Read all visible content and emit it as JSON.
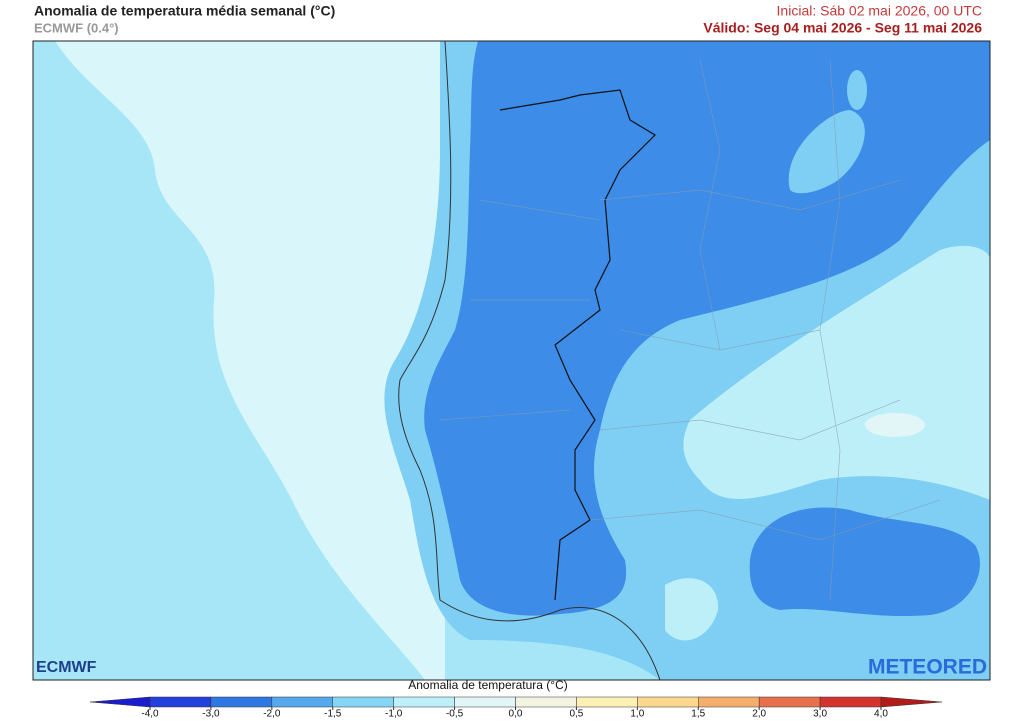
{
  "header": {
    "title": "Anomalia de temperatura média semanal (°C)",
    "subtitle": "ECMWF (0.4°)",
    "initial": "Inicial: Sáb 02 mai 2026, 00 UTC",
    "valid": "Válido: Seg 04 mai 2026 - Seg 11 mai 2026"
  },
  "logos": {
    "left": "ECMWF",
    "right": "METEORED"
  },
  "legend": {
    "title": "Anomalia de temperatura (°C)",
    "ticks": [
      {
        "value": -4,
        "label": "-4,0"
      },
      {
        "value": -3,
        "label": "-3,0"
      },
      {
        "value": -2,
        "label": "-2,0"
      },
      {
        "value": -1.5,
        "label": "-1,5"
      },
      {
        "value": -1,
        "label": "-1,0"
      },
      {
        "value": -0.5,
        "label": "-0,5"
      },
      {
        "value": 0,
        "label": "0,0"
      },
      {
        "value": 0.5,
        "label": "0,5"
      },
      {
        "value": 1,
        "label": "1,0"
      },
      {
        "value": 1.5,
        "label": "1,5"
      },
      {
        "value": 2,
        "label": "2,0"
      },
      {
        "value": 3,
        "label": "3,0"
      },
      {
        "value": 4,
        "label": "4,0"
      }
    ],
    "colors": [
      "#1c1ccf",
      "#2440dc",
      "#2f78e4",
      "#55a8ec",
      "#86d6f3",
      "#bdeff9",
      "#e2f6f8",
      "#f3f3e2",
      "#fdf0b4",
      "#fbd88e",
      "#f4ae6c",
      "#e8704c",
      "#d43430",
      "#b31b1b"
    ]
  }
}
